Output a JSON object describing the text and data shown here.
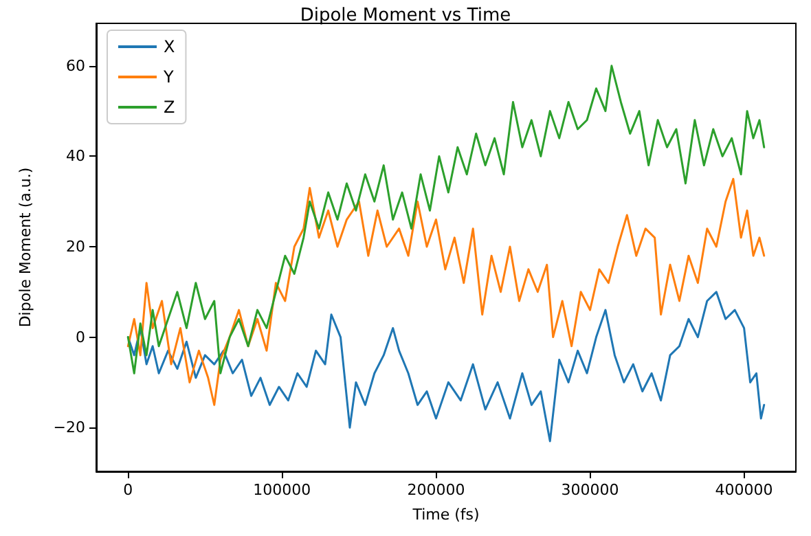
{
  "chart_data": {
    "type": "line",
    "title": "Dipole Moment vs Time",
    "xlabel": "Time (fs)",
    "ylabel": "Dipole Moment (a.u.)",
    "xlim": [
      -20650,
      433650
    ],
    "xticks": [
      0,
      100000,
      200000,
      300000,
      400000
    ],
    "ylim": [
      -29.7,
      69.4
    ],
    "yticks": [
      -20,
      0,
      20,
      40,
      60
    ],
    "legend": "top left",
    "marker": "none",
    "line_style": "solid",
    "series": [
      {
        "name": "X",
        "color": "#1f77b4",
        "x": [
          0,
          4000,
          8000,
          12000,
          16000,
          20000,
          26000,
          32000,
          38000,
          44000,
          50000,
          56000,
          62000,
          68000,
          74000,
          80000,
          86000,
          92000,
          98000,
          104000,
          110000,
          116000,
          122000,
          128000,
          132000,
          138000,
          144000,
          148000,
          154000,
          160000,
          166000,
          172000,
          176000,
          182000,
          188000,
          194000,
          200000,
          208000,
          216000,
          224000,
          232000,
          240000,
          248000,
          256000,
          262000,
          268000,
          274000,
          280000,
          286000,
          292000,
          298000,
          304000,
          310000,
          316000,
          322000,
          328000,
          334000,
          340000,
          346000,
          352000,
          358000,
          364000,
          370000,
          376000,
          382000,
          388000,
          394000,
          400000,
          404000,
          408000,
          411000,
          413000
        ],
        "values": [
          0,
          -4,
          2,
          -6,
          -2,
          -8,
          -3,
          -7,
          -1,
          -9,
          -4,
          -6,
          -3,
          -8,
          -5,
          -13,
          -9,
          -15,
          -11,
          -14,
          -8,
          -11,
          -3,
          -6,
          5,
          0,
          -20,
          -10,
          -15,
          -8,
          -4,
          2,
          -3,
          -8,
          -15,
          -12,
          -18,
          -10,
          -14,
          -6,
          -16,
          -10,
          -18,
          -8,
          -15,
          -12,
          -23,
          -5,
          -10,
          -3,
          -8,
          0,
          6,
          -4,
          -10,
          -6,
          -12,
          -8,
          -14,
          -4,
          -2,
          4,
          0,
          8,
          10,
          4,
          6,
          2,
          -10,
          -8,
          -18,
          -15
        ]
      },
      {
        "name": "Y",
        "color": "#ff7f0e",
        "x": [
          0,
          4000,
          8000,
          12000,
          16000,
          22000,
          28000,
          34000,
          40000,
          46000,
          52000,
          56000,
          60000,
          66000,
          72000,
          78000,
          84000,
          90000,
          96000,
          102000,
          108000,
          114000,
          118000,
          124000,
          130000,
          136000,
          142000,
          150000,
          156000,
          162000,
          168000,
          176000,
          182000,
          188000,
          194000,
          200000,
          206000,
          212000,
          218000,
          224000,
          230000,
          236000,
          242000,
          248000,
          254000,
          260000,
          266000,
          272000,
          276000,
          282000,
          288000,
          294000,
          300000,
          306000,
          312000,
          318000,
          324000,
          330000,
          336000,
          342000,
          346000,
          352000,
          358000,
          364000,
          370000,
          376000,
          382000,
          388000,
          393000,
          398000,
          402000,
          406000,
          410000,
          413000
        ],
        "values": [
          -2,
          4,
          -4,
          12,
          2,
          8,
          -6,
          2,
          -10,
          -3,
          -9,
          -15,
          -5,
          0,
          6,
          -2,
          4,
          -3,
          12,
          8,
          20,
          24,
          33,
          22,
          28,
          20,
          26,
          30,
          18,
          28,
          20,
          24,
          18,
          30,
          20,
          26,
          15,
          22,
          12,
          24,
          5,
          18,
          10,
          20,
          8,
          15,
          10,
          16,
          0,
          8,
          -2,
          10,
          6,
          15,
          12,
          20,
          27,
          18,
          24,
          22,
          5,
          16,
          8,
          18,
          12,
          24,
          20,
          30,
          35,
          22,
          28,
          18,
          22,
          18
        ]
      },
      {
        "name": "Z",
        "color": "#2ca02c",
        "x": [
          0,
          4000,
          8000,
          12000,
          16000,
          20000,
          26000,
          32000,
          38000,
          44000,
          50000,
          56000,
          60000,
          66000,
          72000,
          78000,
          84000,
          90000,
          96000,
          102000,
          108000,
          114000,
          118000,
          124000,
          130000,
          136000,
          142000,
          148000,
          154000,
          160000,
          166000,
          172000,
          178000,
          184000,
          190000,
          196000,
          202000,
          208000,
          214000,
          220000,
          226000,
          232000,
          238000,
          244000,
          250000,
          256000,
          262000,
          268000,
          274000,
          280000,
          286000,
          292000,
          298000,
          304000,
          310000,
          314000,
          320000,
          326000,
          332000,
          338000,
          344000,
          350000,
          356000,
          362000,
          368000,
          374000,
          380000,
          386000,
          392000,
          398000,
          402000,
          406000,
          410000,
          413000
        ],
        "values": [
          0,
          -8,
          3,
          -4,
          6,
          -2,
          4,
          10,
          2,
          12,
          4,
          8,
          -8,
          0,
          4,
          -2,
          6,
          2,
          10,
          18,
          14,
          22,
          30,
          24,
          32,
          26,
          34,
          28,
          36,
          30,
          38,
          26,
          32,
          24,
          36,
          28,
          40,
          32,
          42,
          36,
          45,
          38,
          44,
          36,
          52,
          42,
          48,
          40,
          50,
          44,
          52,
          46,
          48,
          55,
          50,
          60,
          52,
          45,
          50,
          38,
          48,
          42,
          46,
          34,
          48,
          38,
          46,
          40,
          44,
          36,
          50,
          44,
          48,
          42
        ]
      }
    ]
  }
}
